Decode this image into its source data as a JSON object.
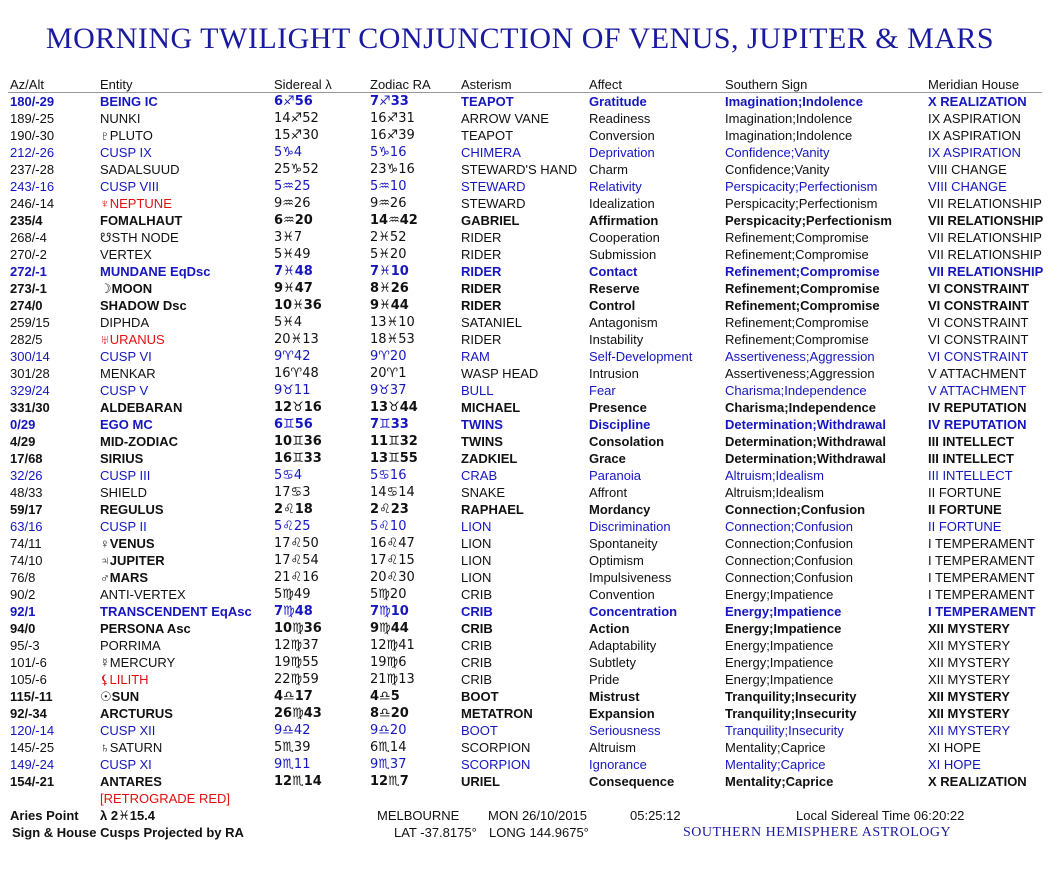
{
  "header": {
    "title": "MORNING TWILIGHT CONJUNCTION OF VENUS, JUPITER & MARS"
  },
  "table": {
    "columns": [
      "Az/Alt",
      "Entity",
      "Sidereal λ",
      "Zodiac RA",
      "Asterism",
      "Affect",
      "Southern Sign",
      "Meridian House"
    ],
    "rows": [
      {
        "cells": [
          "180/-29",
          "BEING IC",
          "6♐56",
          "7♐33",
          "TEAPOT",
          "Gratitude",
          "Imagination;Indolence",
          "X REALIZATION"
        ],
        "color": "#1616c0",
        "bold": true
      },
      {
        "cells": [
          "189/-25",
          "NUNKI",
          "14♐52",
          "16♐31",
          "ARROW VANE",
          "Readiness",
          "Imagination;Indolence",
          "IX ASPIRATION"
        ]
      },
      {
        "cells": [
          "190/-30",
          "♇PLUTO",
          "15♐30",
          "16♐39",
          "TEAPOT",
          "Conversion",
          "Imagination;Indolence",
          "IX ASPIRATION"
        ]
      },
      {
        "cells": [
          "212/-26",
          "CUSP IX",
          "5♑4",
          "5♑16",
          "CHIMERA",
          "Deprivation",
          "Confidence;Vanity",
          "IX ASPIRATION"
        ],
        "color": "#1616c0"
      },
      {
        "cells": [
          "237/-28",
          "SADALSUUD",
          "25♑52",
          "23♑16",
          "STEWARD'S HAND",
          "Charm",
          "Confidence;Vanity",
          "VIII CHANGE"
        ]
      },
      {
        "cells": [
          "243/-16",
          "CUSP VIII",
          "5♒25",
          "5♒10",
          "STEWARD",
          "Relativity",
          "Perspicacity;Perfectionism",
          "VIII CHANGE"
        ],
        "color": "#1616c0"
      },
      {
        "cells": [
          "246/-14",
          "♆NEPTUNE",
          "9♒26",
          "9♒26",
          "STEWARD",
          "Idealization",
          "Perspicacity;Perfectionism",
          "VII RELATIONSHIP"
        ],
        "entity_color": "#e01010"
      },
      {
        "cells": [
          "235/4",
          "FOMALHAUT",
          "6♒20",
          "14♒42",
          "GABRIEL",
          "Affirmation",
          "Perspicacity;Perfectionism",
          "VII RELATIONSHIP"
        ],
        "bold": true
      },
      {
        "cells": [
          "268/-4",
          "☋STH NODE",
          "3♓7",
          "2♓52",
          "RIDER",
          "Cooperation",
          "Refinement;Compromise",
          "VII RELATIONSHIP"
        ]
      },
      {
        "cells": [
          "270/-2",
          "VERTEX",
          "5♓49",
          "5♓20",
          "RIDER",
          "Submission",
          "Refinement;Compromise",
          "VII RELATIONSHIP"
        ]
      },
      {
        "cells": [
          "272/-1",
          "MUNDANE EqDsc",
          "7♓48",
          "7♓10",
          "RIDER",
          "Contact",
          "Refinement;Compromise",
          "VII RELATIONSHIP"
        ],
        "color": "#1616c0",
        "bold": true
      },
      {
        "cells": [
          "273/-1",
          "☽MOON",
          "9♓47",
          "8♓26",
          "RIDER",
          "Reserve",
          "Refinement;Compromise",
          "VI CONSTRAINT"
        ],
        "bold": true
      },
      {
        "cells": [
          "274/0",
          "SHADOW Dsc",
          "10♓36",
          "9♓44",
          "RIDER",
          "Control",
          "Refinement;Compromise",
          "VI CONSTRAINT"
        ],
        "bold": true
      },
      {
        "cells": [
          "259/15",
          "DIPHDA",
          "5♓4",
          "13♓10",
          "SATANIEL",
          "Antagonism",
          "Refinement;Compromise",
          "VI CONSTRAINT"
        ]
      },
      {
        "cells": [
          "282/5",
          "♅URANUS",
          "20♓13",
          "18♓53",
          "RIDER",
          "Instability",
          "Refinement;Compromise",
          "VI CONSTRAINT"
        ],
        "entity_color": "#e01010"
      },
      {
        "cells": [
          "300/14",
          "CUSP VI",
          "9♈42",
          "9♈20",
          "RAM",
          "Self-Development",
          "Assertiveness;Aggression",
          "VI CONSTRAINT"
        ],
        "color": "#1616c0"
      },
      {
        "cells": [
          "301/28",
          "MENKAR",
          "16♈48",
          "20♈1",
          "WASP HEAD",
          "Intrusion",
          "Assertiveness;Aggression",
          "V ATTACHMENT"
        ]
      },
      {
        "cells": [
          "329/24",
          "CUSP V",
          "9♉11",
          "9♉37",
          "BULL",
          "Fear",
          "Charisma;Independence",
          "V ATTACHMENT"
        ],
        "color": "#1616c0"
      },
      {
        "cells": [
          "331/30",
          "ALDEBARAN",
          "12♉16",
          "13♉44",
          "MICHAEL",
          "Presence",
          "Charisma;Independence",
          "IV REPUTATION"
        ],
        "bold": true
      },
      {
        "cells": [
          "0/29",
          "EGO MC",
          "6♊56",
          "7♊33",
          "TWINS",
          "Discipline",
          "Determination;Withdrawal",
          "IV REPUTATION"
        ],
        "color": "#1616c0",
        "bold": true
      },
      {
        "cells": [
          "4/29",
          "MID-ZODIAC",
          "10♊36",
          "11♊32",
          "TWINS",
          "Consolation",
          "Determination;Withdrawal",
          "III INTELLECT"
        ],
        "bold": true
      },
      {
        "cells": [
          "17/68",
          "SIRIUS",
          "16♊33",
          "13♊55",
          "ZADKIEL",
          "Grace",
          "Determination;Withdrawal",
          "III INTELLECT"
        ],
        "bold": true
      },
      {
        "cells": [
          "32/26",
          "CUSP III",
          "5♋4",
          "5♋16",
          "CRAB",
          "Paranoia",
          "Altruism;Idealism",
          "III INTELLECT"
        ],
        "color": "#1616c0"
      },
      {
        "cells": [
          "48/33",
          "SHIELD",
          "17♋3",
          "14♋14",
          "SNAKE",
          "Affront",
          "Altruism;Idealism",
          "II FORTUNE"
        ]
      },
      {
        "cells": [
          "59/17",
          "REGULUS",
          "2♌18",
          "2♌23",
          "RAPHAEL",
          "Mordancy",
          "Connection;Confusion",
          "II FORTUNE"
        ],
        "bold": true
      },
      {
        "cells": [
          "63/16",
          "CUSP II",
          "5♌25",
          "5♌10",
          "LION",
          "Discrimination",
          "Connection;Confusion",
          "II FORTUNE"
        ],
        "color": "#1616c0"
      },
      {
        "cells": [
          "74/11",
          "♀VENUS",
          "17♌50",
          "16♌47",
          "LION",
          "Spontaneity",
          "Connection;Confusion",
          "I TEMPERAMENT"
        ],
        "entity_bold": true
      },
      {
        "cells": [
          "74/10",
          "♃JUPITER",
          "17♌54",
          "17♌15",
          "LION",
          "Optimism",
          "Connection;Confusion",
          "I TEMPERAMENT"
        ],
        "entity_bold": true
      },
      {
        "cells": [
          "76/8",
          "♂MARS",
          "21♌16",
          "20♌30",
          "LION",
          "Impulsiveness",
          "Connection;Confusion",
          "I TEMPERAMENT"
        ],
        "entity_bold": true
      },
      {
        "cells": [
          "90/2",
          "ANTI-VERTEX",
          "5♍49",
          "5♍20",
          "CRIB",
          "Convention",
          "Energy;Impatience",
          "I TEMPERAMENT"
        ]
      },
      {
        "cells": [
          "92/1",
          "TRANSCENDENT EqAsc",
          "7♍48",
          "7♍10",
          "CRIB",
          "Concentration",
          "Energy;Impatience",
          "I TEMPERAMENT"
        ],
        "color": "#1616c0",
        "bold": true
      },
      {
        "cells": [
          "94/0",
          "PERSONA Asc",
          "10♍36",
          "9♍44",
          "CRIB",
          "Action",
          "Energy;Impatience",
          "XII MYSTERY"
        ],
        "bold": true
      },
      {
        "cells": [
          "95/-3",
          "PORRIMA",
          "12♍37",
          "12♍41",
          "CRIB",
          "Adaptability",
          "Energy;Impatience",
          "XII MYSTERY"
        ]
      },
      {
        "cells": [
          "101/-6",
          "☿MERCURY",
          "19♍55",
          "19♍6",
          "CRIB",
          "Subtlety",
          "Energy;Impatience",
          "XII MYSTERY"
        ]
      },
      {
        "cells": [
          "105/-6",
          "⚸LILITH",
          "22♍59",
          "21♍13",
          "CRIB",
          "Pride",
          "Energy;Impatience",
          "XII MYSTERY"
        ],
        "entity_color": "#e01010"
      },
      {
        "cells": [
          "115/-11",
          "☉SUN",
          "4♎17",
          "4♎5",
          "BOOT",
          "Mistrust",
          "Tranquility;Insecurity",
          "XII MYSTERY"
        ],
        "bold": true
      },
      {
        "cells": [
          "92/-34",
          "ARCTURUS",
          "26♍43",
          "8♎20",
          "METATRON",
          "Expansion",
          "Tranquility;Insecurity",
          "XII MYSTERY"
        ],
        "bold": true
      },
      {
        "cells": [
          "120/-14",
          "CUSP XII",
          "9♎42",
          "9♎20",
          "BOOT",
          "Seriousness",
          "Tranquility;Insecurity",
          "XII MYSTERY"
        ],
        "color": "#1616c0"
      },
      {
        "cells": [
          "145/-25",
          "♄SATURN",
          "5♏39",
          "6♏14",
          "SCORPION",
          "Altruism",
          "Mentality;Caprice",
          "XI HOPE"
        ]
      },
      {
        "cells": [
          "149/-24",
          "CUSP XI",
          "9♏11",
          "9♏37",
          "SCORPION",
          "Ignorance",
          "Mentality;Caprice",
          "XI HOPE"
        ],
        "color": "#1616c0"
      },
      {
        "cells": [
          "154/-21",
          "ANTARES",
          "12♏14",
          "12♏7",
          "URIEL",
          "Consequence",
          "Mentality;Caprice",
          "X REALIZATION"
        ],
        "bold": true
      }
    ],
    "note": "[RETROGRADE RED]",
    "note_color": "#e01010"
  },
  "footer": {
    "aries_point": "Aries Point",
    "aries_value": "λ 2♓15.4",
    "city": "MELBOURNE",
    "date": "MON 26/10/2015",
    "time": "05:25:12",
    "sidereal_time": "Local Sidereal Time 06:20:22",
    "projection": "Sign & House Cusps Projected by RA",
    "lat": "LAT -37.8175°",
    "long": "LONG 144.9675°",
    "brand": "SOUTHERN HEMISPHERE ASTROLOGY"
  }
}
